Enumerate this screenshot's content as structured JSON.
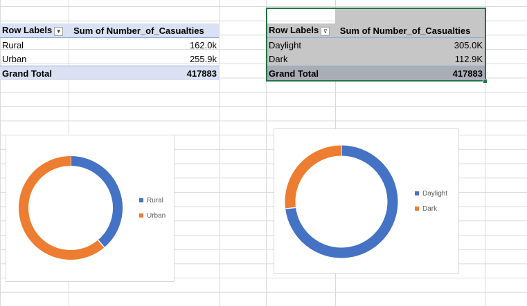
{
  "pivot1": {
    "header": {
      "row_labels": "Row Labels",
      "value_header": "Sum of Number_of_Casualties"
    },
    "rows": [
      {
        "label": "Rural",
        "value": "162.0k"
      },
      {
        "label": "Urban",
        "value": "255.9k"
      }
    ],
    "total": {
      "label": "Grand Total",
      "value": "417883"
    }
  },
  "pivot2": {
    "header": {
      "row_labels": "Row Labels",
      "value_header": "Sum of Number_of_Casualties"
    },
    "rows": [
      {
        "label": "Daylight",
        "value": "305.0K"
      },
      {
        "label": "Dark",
        "value": "112.9K"
      }
    ],
    "total": {
      "label": "Grand Total",
      "value": "417883"
    }
  },
  "chart_data": [
    {
      "type": "pie",
      "donut": true,
      "categories": [
        "Rural",
        "Urban"
      ],
      "values": [
        162000,
        255883
      ],
      "colors": [
        "#4472c4",
        "#ed7d31"
      ],
      "legend_position": "right"
    },
    {
      "type": "pie",
      "donut": true,
      "categories": [
        "Daylight",
        "Dark"
      ],
      "values": [
        305000,
        112883
      ],
      "colors": [
        "#4472c4",
        "#ed7d31"
      ],
      "legend_position": "right"
    }
  ]
}
